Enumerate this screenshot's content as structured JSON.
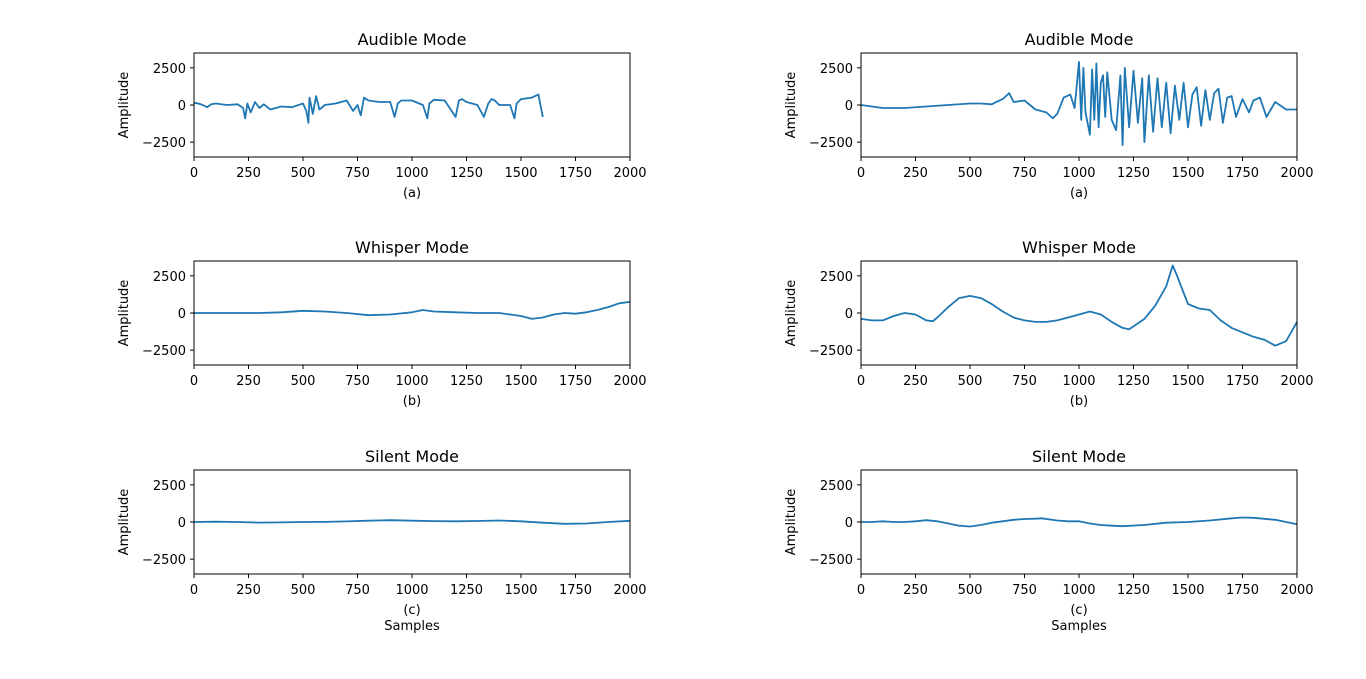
{
  "chart_data": [
    {
      "type": "line",
      "title": "Audible Mode",
      "ylabel": "Amplitude",
      "caption": "(a)",
      "xlabel": "",
      "xlim": [
        0,
        2000
      ],
      "ylim": [
        -3500,
        3500
      ],
      "xticks": [
        "0",
        "250",
        "500",
        "750",
        "1000",
        "1250",
        "1500",
        "1750",
        "2000"
      ],
      "yticks": [
        "2500",
        "0",
        "−2500"
      ],
      "color": "#1f77b4",
      "series": [
        {
          "x": [
            0,
            20,
            40,
            60,
            80,
            100,
            150,
            200,
            225,
            235,
            245,
            260,
            280,
            300,
            320,
            350,
            400,
            450,
            500,
            515,
            525,
            530,
            545,
            560,
            575,
            600,
            650,
            700,
            730,
            750,
            765,
            780,
            800,
            850,
            900,
            920,
            935,
            950,
            1000,
            1050,
            1070,
            1080,
            1100,
            1150,
            1200,
            1215,
            1230,
            1250,
            1300,
            1330,
            1350,
            1365,
            1380,
            1400,
            1450,
            1470,
            1480,
            1500,
            1550,
            1580,
            1600
          ],
          "y": [
            150,
            100,
            0,
            -150,
            50,
            100,
            0,
            50,
            -200,
            -900,
            100,
            -500,
            200,
            -200,
            50,
            -300,
            -100,
            -150,
            100,
            -400,
            -1200,
            500,
            -600,
            600,
            -300,
            0,
            100,
            300,
            -400,
            0,
            -700,
            500,
            300,
            200,
            200,
            -800,
            100,
            300,
            300,
            0,
            -900,
            100,
            350,
            300,
            -800,
            300,
            400,
            200,
            0,
            -800,
            100,
            400,
            300,
            0,
            0,
            -900,
            100,
            400,
            500,
            700,
            -800
          ]
        }
      ]
    },
    {
      "type": "line",
      "title": "Audible Mode",
      "ylabel": "Amplitude",
      "caption": "(a)",
      "xlabel": "",
      "xlim": [
        0,
        2000
      ],
      "ylim": [
        -3500,
        3500
      ],
      "xticks": [
        "0",
        "250",
        "500",
        "750",
        "1000",
        "1250",
        "1500",
        "1750",
        "2000"
      ],
      "yticks": [
        "2500",
        "0",
        "−2500"
      ],
      "color": "#1f77b4",
      "series": [
        {
          "x": [
            0,
            100,
            200,
            300,
            400,
            500,
            550,
            600,
            620,
            650,
            680,
            700,
            750,
            800,
            850,
            880,
            900,
            930,
            960,
            980,
            1000,
            1010,
            1020,
            1030,
            1050,
            1060,
            1070,
            1080,
            1090,
            1100,
            1110,
            1120,
            1130,
            1150,
            1170,
            1190,
            1200,
            1210,
            1230,
            1250,
            1270,
            1290,
            1300,
            1320,
            1340,
            1360,
            1380,
            1400,
            1420,
            1440,
            1460,
            1480,
            1500,
            1520,
            1540,
            1560,
            1580,
            1600,
            1620,
            1640,
            1660,
            1680,
            1700,
            1720,
            1750,
            1780,
            1800,
            1830,
            1860,
            1900,
            1950,
            2000
          ],
          "y": [
            0,
            -200,
            -200,
            -100,
            0,
            100,
            100,
            50,
            200,
            400,
            800,
            200,
            300,
            -300,
            -500,
            -900,
            -600,
            500,
            700,
            -200,
            2900,
            -1000,
            2500,
            -500,
            -2000,
            2400,
            -1000,
            2800,
            -1500,
            1500,
            2000,
            -800,
            2200,
            -1000,
            -1700,
            2000,
            -2700,
            2500,
            -1500,
            2300,
            -1200,
            1800,
            -2500,
            2000,
            -1800,
            1800,
            -1500,
            1500,
            -1900,
            1300,
            -1000,
            1500,
            -1500,
            700,
            1200,
            -1400,
            1000,
            -1000,
            800,
            1100,
            -1200,
            500,
            600,
            -800,
            400,
            -500,
            300,
            500,
            -800,
            200,
            -300,
            -300
          ]
        }
      ]
    },
    {
      "type": "line",
      "title": "Whisper Mode",
      "ylabel": "Amplitude",
      "caption": "(b)",
      "xlabel": "",
      "xlim": [
        0,
        2000
      ],
      "ylim": [
        -3500,
        3500
      ],
      "xticks": [
        "0",
        "250",
        "500",
        "750",
        "1000",
        "1250",
        "1500",
        "1750",
        "2000"
      ],
      "yticks": [
        "2500",
        "0",
        "−2500"
      ],
      "color": "#1f77b4",
      "series": [
        {
          "x": [
            0,
            100,
            200,
            300,
            400,
            500,
            600,
            700,
            800,
            900,
            1000,
            1050,
            1100,
            1200,
            1300,
            1400,
            1500,
            1550,
            1600,
            1650,
            1700,
            1750,
            1800,
            1850,
            1900,
            1950,
            2000
          ],
          "y": [
            0,
            0,
            0,
            0,
            50,
            150,
            100,
            0,
            -150,
            -100,
            50,
            200,
            100,
            50,
            0,
            0,
            -200,
            -400,
            -300,
            -100,
            0,
            -50,
            50,
            200,
            400,
            650,
            750
          ]
        }
      ]
    },
    {
      "type": "line",
      "title": "Whisper Mode",
      "ylabel": "Amplitude",
      "caption": "(b)",
      "xlabel": "",
      "xlim": [
        0,
        2000
      ],
      "ylim": [
        -3500,
        3500
      ],
      "xticks": [
        "0",
        "250",
        "500",
        "750",
        "1000",
        "1250",
        "1500",
        "1750",
        "2000"
      ],
      "yticks": [
        "2500",
        "0",
        "−2500"
      ],
      "color": "#1f77b4",
      "series": [
        {
          "x": [
            0,
            50,
            100,
            150,
            200,
            250,
            300,
            330,
            350,
            400,
            450,
            500,
            550,
            600,
            650,
            700,
            750,
            800,
            850,
            900,
            950,
            1000,
            1050,
            1100,
            1150,
            1200,
            1230,
            1250,
            1300,
            1350,
            1400,
            1430,
            1450,
            1500,
            1550,
            1600,
            1650,
            1700,
            1750,
            1800,
            1850,
            1900,
            1950,
            2000
          ],
          "y": [
            -400,
            -500,
            -500,
            -200,
            0,
            -100,
            -500,
            -550,
            -300,
            400,
            1000,
            1150,
            1000,
            600,
            100,
            -300,
            -500,
            -600,
            -600,
            -500,
            -300,
            -100,
            100,
            -100,
            -600,
            -1000,
            -1100,
            -900,
            -400,
            500,
            1800,
            3200,
            2500,
            600,
            300,
            200,
            -500,
            -1000,
            -1300,
            -1600,
            -1800,
            -2200,
            -1900,
            -600
          ]
        }
      ]
    },
    {
      "type": "line",
      "title": "Silent Mode",
      "ylabel": "Amplitude",
      "caption": "(c)",
      "xlabel": "Samples",
      "xlim": [
        0,
        2000
      ],
      "ylim": [
        -3500,
        3500
      ],
      "xticks": [
        "0",
        "250",
        "500",
        "750",
        "1000",
        "1250",
        "1500",
        "1750",
        "2000"
      ],
      "yticks": [
        "2500",
        "0",
        "−2500"
      ],
      "color": "#1f77b4",
      "series": [
        {
          "x": [
            0,
            100,
            200,
            300,
            400,
            500,
            600,
            700,
            800,
            900,
            1000,
            1100,
            1200,
            1300,
            1400,
            1500,
            1600,
            1700,
            1800,
            1900,
            2000
          ],
          "y": [
            0,
            20,
            0,
            -40,
            -30,
            0,
            10,
            40,
            90,
            120,
            90,
            60,
            50,
            70,
            100,
            50,
            -50,
            -120,
            -100,
            0,
            80
          ]
        }
      ]
    },
    {
      "type": "line",
      "title": "Silent Mode",
      "ylabel": "Amplitude",
      "caption": "(c)",
      "xlabel": "Samples",
      "xlim": [
        0,
        2000
      ],
      "ylim": [
        -3500,
        3500
      ],
      "xticks": [
        "0",
        "250",
        "500",
        "750",
        "1000",
        "1250",
        "1500",
        "1750",
        "2000"
      ],
      "yticks": [
        "2500",
        "0",
        "−2500"
      ],
      "color": "#1f77b4",
      "series": [
        {
          "x": [
            0,
            50,
            100,
            150,
            200,
            250,
            300,
            350,
            400,
            450,
            500,
            550,
            600,
            650,
            700,
            750,
            800,
            830,
            850,
            900,
            950,
            1000,
            1050,
            1100,
            1150,
            1200,
            1300,
            1400,
            1500,
            1600,
            1700,
            1750,
            1800,
            1900,
            2000
          ],
          "y": [
            0,
            0,
            50,
            0,
            0,
            50,
            120,
            50,
            -100,
            -250,
            -300,
            -200,
            -50,
            50,
            150,
            200,
            220,
            250,
            200,
            100,
            50,
            50,
            -100,
            -200,
            -250,
            -280,
            -200,
            -50,
            0,
            100,
            250,
            300,
            280,
            150,
            -150
          ]
        }
      ]
    }
  ]
}
